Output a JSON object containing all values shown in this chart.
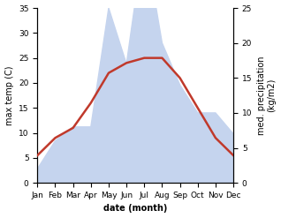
{
  "months": [
    "Jan",
    "Feb",
    "Mar",
    "Apr",
    "May",
    "Jun",
    "Jul",
    "Aug",
    "Sep",
    "Oct",
    "Nov",
    "Dec"
  ],
  "temperature": [
    5.5,
    9.0,
    11.0,
    16.0,
    22.0,
    24.0,
    25.0,
    25.0,
    21.0,
    15.0,
    9.0,
    5.5
  ],
  "precipitation": [
    2,
    6,
    8,
    8,
    25,
    17,
    35,
    20,
    14,
    10,
    10,
    7
  ],
  "temp_color": "#c0392b",
  "precip_color": "#c5d4ee",
  "bg_color": "#ffffff",
  "temp_ylim": [
    0,
    35
  ],
  "precip_ylim": [
    0,
    25
  ],
  "temp_yticks": [
    0,
    5,
    10,
    15,
    20,
    25,
    30,
    35
  ],
  "precip_yticks": [
    0,
    5,
    10,
    15,
    20,
    25
  ],
  "xlabel": "date (month)",
  "ylabel_left": "max temp (C)",
  "ylabel_right": "med. precipitation\n(kg/m2)",
  "label_fontsize": 7,
  "tick_fontsize": 6.5,
  "linewidth": 1.8
}
